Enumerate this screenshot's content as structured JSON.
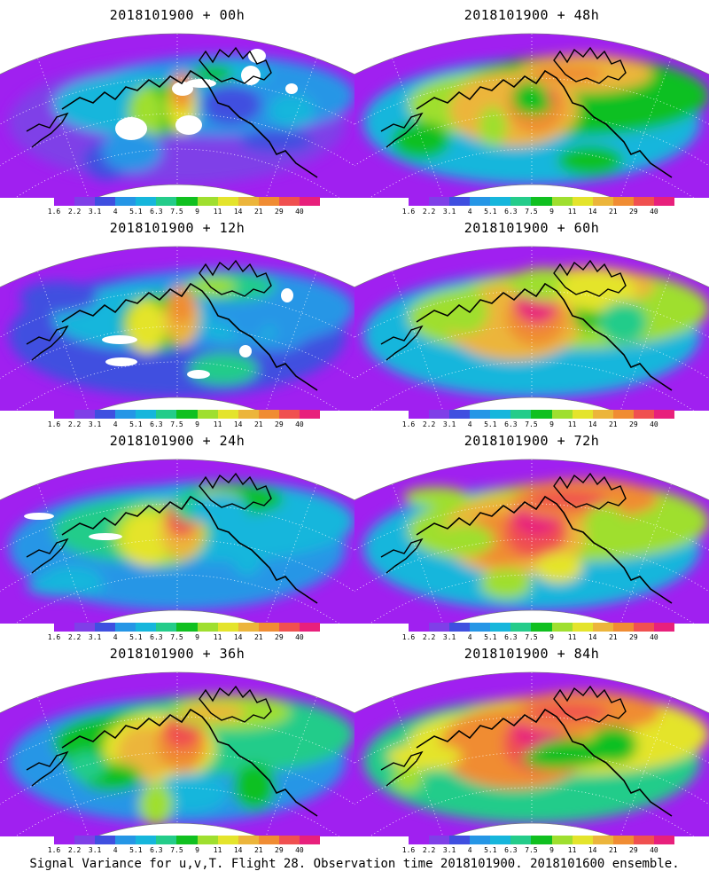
{
  "figure": {
    "caption": "Signal Variance for u,v,T. Flight 28. Observation time 2018101900. 2018101600 ensemble."
  },
  "colorbar": {
    "labels": [
      "1.6",
      "2.2",
      "3.1",
      "4",
      "5.1",
      "6.3",
      "7.5",
      "9",
      "11",
      "14",
      "21",
      "29",
      "40"
    ],
    "colors": [
      "#a020f0",
      "#7f3fe8",
      "#3f4fe0",
      "#2596e6",
      "#16b6dc",
      "#24cc8a",
      "#10c020",
      "#9fdf2f",
      "#e4e42c",
      "#ecb53b",
      "#f08c33",
      "#f05050",
      "#e8207c"
    ]
  },
  "panels": [
    {
      "title": "2018101900 + 00h",
      "intensity": 0.1
    },
    {
      "title": "2018101900 + 48h",
      "intensity": 0.72
    },
    {
      "title": "2018101900 + 12h",
      "intensity": 0.22
    },
    {
      "title": "2018101900 + 60h",
      "intensity": 0.78
    },
    {
      "title": "2018101900 + 24h",
      "intensity": 0.4
    },
    {
      "title": "2018101900 + 72h",
      "intensity": 0.86
    },
    {
      "title": "2018101900 + 36h",
      "intensity": 0.56
    },
    {
      "title": "2018101900 + 84h",
      "intensity": 0.92
    }
  ]
}
